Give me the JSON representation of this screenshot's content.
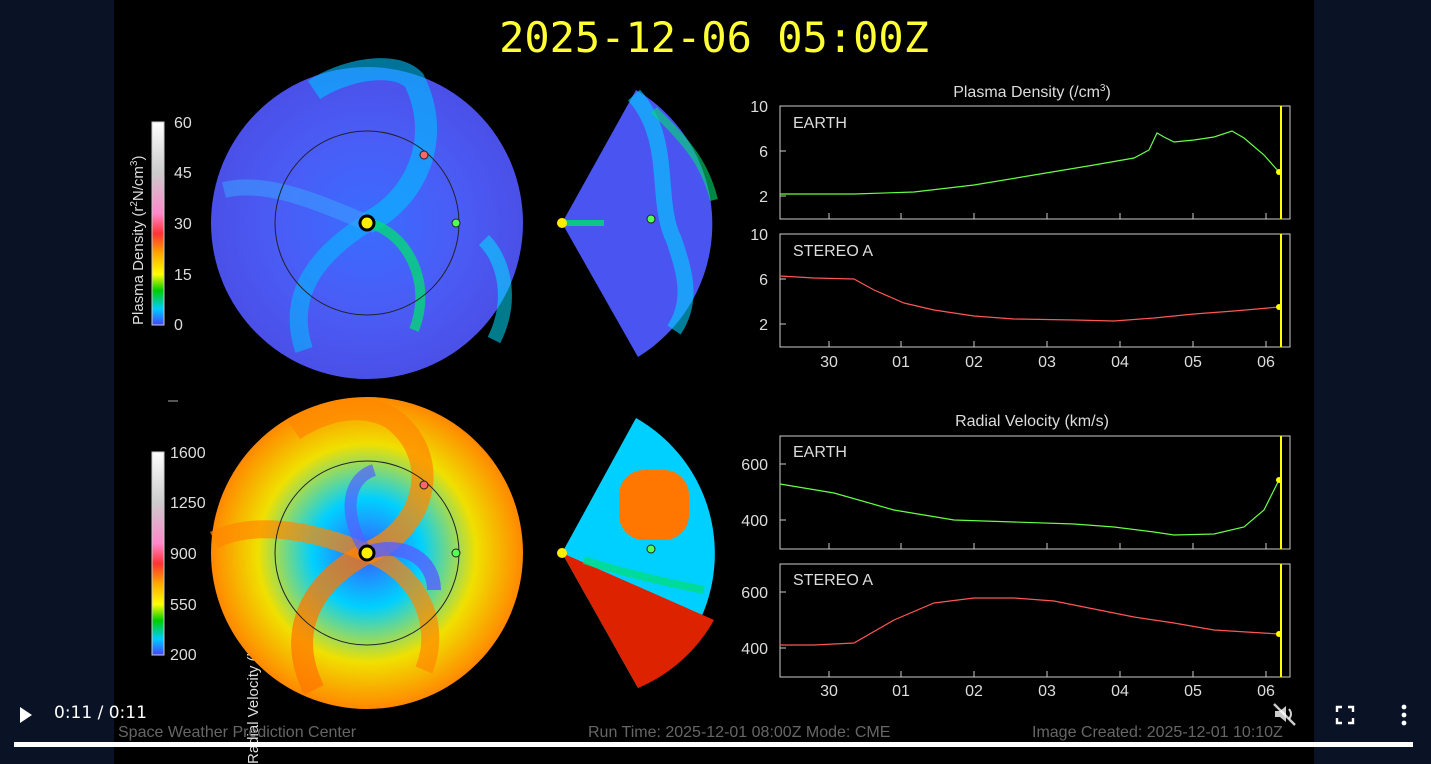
{
  "timestamp": "2025-12-06  05:00Z",
  "density_colorbar": {
    "label_main": "Plasma Density (r",
    "label_sup": "2",
    "label_rest": "N/cm",
    "label_sup2": "3",
    "label_end": ")",
    "ticks": [
      "60",
      "45",
      "30",
      "15",
      "0"
    ]
  },
  "velocity_colorbar": {
    "label": "Radial Velocity (km/s)",
    "ticks": [
      "1600",
      "1250",
      "900",
      "550",
      "200"
    ]
  },
  "density_plot": {
    "title": "Plasma Density (/cm",
    "title_sup": "3",
    "title_end": ")",
    "panel1_label": "EARTH",
    "panel2_label": "STEREO A",
    "yticks": [
      "10",
      "6",
      "2"
    ],
    "xticks": [
      "30",
      "01",
      "02",
      "03",
      "04",
      "05",
      "06"
    ]
  },
  "velocity_plot": {
    "title": "Radial Velocity (km/s)",
    "panel1_label": "EARTH",
    "panel2_label": "STEREO A",
    "panel1_yticks": [
      "600",
      "400"
    ],
    "panel2_yticks": [
      "600",
      "400"
    ],
    "xticks": [
      "30",
      "01",
      "02",
      "03",
      "04",
      "05",
      "06"
    ]
  },
  "footer": {
    "left": "Space Weather Prediction Center",
    "center": "Run Time: 2025-12-01 08:00Z  Mode: CME",
    "right": "Image Created: 2025-12-01 10:10Z"
  },
  "player": {
    "time": "0:11 / 0:11",
    "progress": 1.0
  },
  "colors": {
    "earth_line": "#66ff44",
    "stereo_line": "#ff5555",
    "timestamp": "#ffff33",
    "marker_line": "#ffff00"
  },
  "icons": {
    "play": "play-icon",
    "mute": "volume-muted-icon",
    "fullscreen": "fullscreen-icon",
    "more": "more-vert-icon"
  }
}
